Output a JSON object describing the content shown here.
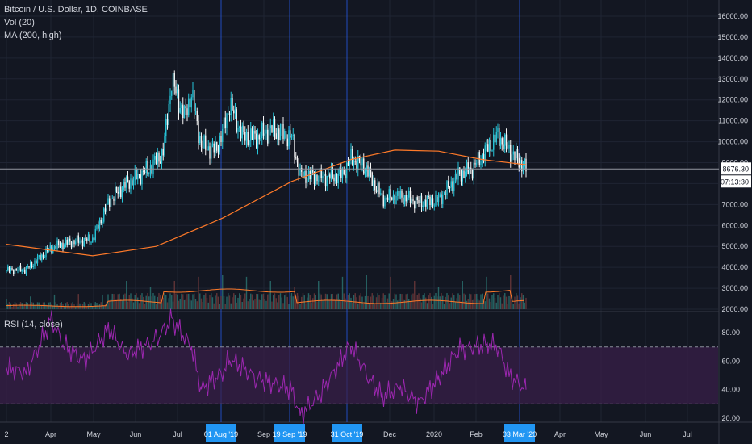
{
  "legend": {
    "title": "Bitcoin / U.S. Dollar, 1D, COINBASE",
    "vol": "Vol (20)",
    "ma": "MA (200, high)",
    "rsi": "RSI (14, close)"
  },
  "price_axis": {
    "ticks": [
      "16000.00",
      "15000.00",
      "14000.00",
      "13000.00",
      "12000.00",
      "11000.00",
      "10000.00",
      "9000.00",
      "8000.00",
      "7000.00",
      "6000.00",
      "5000.00",
      "4000.00",
      "3000.00",
      "2000.00"
    ],
    "last_price": "8676.30",
    "countdown": "07:13:30"
  },
  "rsi_axis": {
    "ticks": [
      "80.00",
      "60.00",
      "40.00",
      "20.00"
    ]
  },
  "time_axis": {
    "ticks": [
      "2",
      "Apr",
      "May",
      "Jun",
      "Jul",
      "Sep",
      "Dec",
      "2020",
      "Feb",
      "Apr",
      "May",
      "Jun",
      "Jul"
    ],
    "highlighted": [
      "01 Aug '19",
      "19 Sep '19",
      "31 Oct '19",
      "03 Mar '20"
    ]
  },
  "colors": {
    "background": "#131722",
    "up": "#26c6da",
    "down": "#f5f5f5",
    "ma": "#ff7a29",
    "rsi": "#9c27b0",
    "rsi_band": "#3a1f4a",
    "vline": "#2962ff",
    "highlight_label": "#2196f3"
  },
  "chart_data": [
    {
      "type": "candlestick",
      "title": "Bitcoin / U.S. Dollar, 1D, COINBASE",
      "ylim": [
        2000,
        16000
      ],
      "x": [
        "2019-03-01",
        "2019-03-15",
        "2019-04-02",
        "2019-04-15",
        "2019-05-01",
        "2019-05-13",
        "2019-05-25",
        "2019-06-10",
        "2019-06-20",
        "2019-06-26",
        "2019-07-05",
        "2019-07-10",
        "2019-07-17",
        "2019-07-27",
        "2019-08-01",
        "2019-08-06",
        "2019-08-15",
        "2019-08-25",
        "2019-09-05",
        "2019-09-15",
        "2019-09-19",
        "2019-09-25",
        "2019-10-10",
        "2019-10-25",
        "2019-10-31",
        "2019-11-10",
        "2019-11-22",
        "2019-12-05",
        "2019-12-18",
        "2020-01-01",
        "2020-01-15",
        "2020-01-25",
        "2020-02-05",
        "2020-02-12",
        "2020-02-20",
        "2020-03-03"
      ],
      "close": [
        3850,
        3900,
        4950,
        5200,
        5350,
        7200,
        8000,
        8700,
        9500,
        12900,
        11200,
        12300,
        9800,
        9600,
        10400,
        11800,
        10300,
        10200,
        10600,
        10300,
        10200,
        8400,
        8300,
        8400,
        9200,
        8800,
        7300,
        7400,
        7100,
        7200,
        8400,
        8700,
        9700,
        10300,
        9600,
        8700
      ],
      "series": [
        {
          "name": "MA (200, high)",
          "x": [
            "2019-03-01",
            "2019-05-01",
            "2019-06-15",
            "2019-08-01",
            "2019-09-19",
            "2019-10-31",
            "2019-12-01",
            "2020-01-01",
            "2020-02-01",
            "2020-03-03"
          ],
          "values": [
            5100,
            4550,
            5000,
            6350,
            8100,
            9150,
            9600,
            9550,
            9150,
            8900
          ]
        }
      ]
    },
    {
      "type": "bar",
      "title": "Vol (20)",
      "series": [
        {
          "name": "Vol (20)"
        }
      ]
    },
    {
      "type": "line",
      "title": "RSI (14, close)",
      "ylim": [
        20,
        88
      ],
      "bands": [
        70,
        30
      ],
      "x": [
        "2019-03-01",
        "2019-03-15",
        "2019-04-02",
        "2019-04-10",
        "2019-04-25",
        "2019-05-13",
        "2019-05-25",
        "2019-06-15",
        "2019-06-26",
        "2019-07-10",
        "2019-07-17",
        "2019-08-01",
        "2019-08-06",
        "2019-08-25",
        "2019-09-19",
        "2019-09-25",
        "2019-10-10",
        "2019-10-31",
        "2019-11-10",
        "2019-11-22",
        "2019-12-05",
        "2019-12-18",
        "2020-01-01",
        "2020-01-15",
        "2020-02-05",
        "2020-02-12",
        "2020-02-20",
        "2020-03-03"
      ],
      "values": [
        55,
        52,
        89,
        72,
        60,
        83,
        64,
        75,
        89,
        70,
        40,
        52,
        62,
        48,
        40,
        22,
        38,
        72,
        52,
        35,
        42,
        30,
        48,
        68,
        72,
        70,
        50,
        40
      ]
    }
  ]
}
